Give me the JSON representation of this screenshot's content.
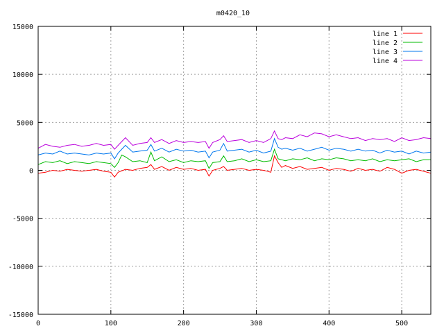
{
  "chart_data": {
    "type": "line",
    "title": "m0420_10",
    "xlabel": "",
    "ylabel": "",
    "xlim": [
      0,
      540
    ],
    "ylim": [
      -15000,
      15000
    ],
    "xticks": [
      0,
      100,
      200,
      300,
      400,
      500
    ],
    "yticks": [
      -15000,
      -10000,
      -5000,
      0,
      5000,
      10000,
      15000
    ],
    "grid": true,
    "legend_position": "top-right",
    "series": [
      {
        "name": "line 1",
        "color": "#ff0000",
        "x": [
          0,
          10,
          20,
          30,
          40,
          50,
          60,
          70,
          80,
          90,
          100,
          105,
          110,
          120,
          130,
          140,
          150,
          155,
          160,
          170,
          180,
          190,
          200,
          210,
          220,
          230,
          235,
          240,
          250,
          255,
          260,
          270,
          280,
          290,
          300,
          310,
          320,
          325,
          330,
          335,
          340,
          350,
          360,
          370,
          380,
          390,
          400,
          410,
          420,
          430,
          440,
          450,
          460,
          470,
          480,
          490,
          500,
          510,
          520,
          530,
          540
        ],
        "y": [
          -300,
          -200,
          0,
          -100,
          100,
          0,
          -100,
          0,
          100,
          -100,
          -200,
          -700,
          -200,
          100,
          0,
          200,
          300,
          600,
          100,
          400,
          0,
          300,
          100,
          200,
          0,
          100,
          -600,
          0,
          200,
          400,
          0,
          100,
          200,
          0,
          100,
          0,
          -200,
          1500,
          800,
          300,
          500,
          200,
          400,
          100,
          200,
          300,
          0,
          200,
          100,
          -100,
          200,
          0,
          100,
          -100,
          300,
          100,
          -300,
          0,
          100,
          -100,
          -300
        ]
      },
      {
        "name": "line 2",
        "color": "#00bb00",
        "x": [
          0,
          10,
          20,
          30,
          40,
          50,
          60,
          70,
          80,
          90,
          100,
          105,
          110,
          115,
          120,
          130,
          140,
          150,
          155,
          160,
          170,
          180,
          190,
          200,
          210,
          220,
          230,
          235,
          240,
          250,
          255,
          260,
          270,
          280,
          290,
          300,
          310,
          320,
          325,
          330,
          335,
          340,
          350,
          360,
          370,
          380,
          390,
          400,
          410,
          420,
          430,
          440,
          450,
          460,
          470,
          480,
          490,
          500,
          510,
          520,
          530,
          540
        ],
        "y": [
          600,
          900,
          800,
          1000,
          700,
          900,
          800,
          700,
          900,
          800,
          700,
          300,
          800,
          1600,
          1400,
          900,
          1000,
          800,
          1900,
          1000,
          1400,
          900,
          1100,
          800,
          1000,
          900,
          1000,
          200,
          800,
          900,
          1500,
          900,
          1000,
          1200,
          900,
          1100,
          900,
          1000,
          2200,
          1200,
          1100,
          1000,
          1200,
          1100,
          1300,
          1000,
          1200,
          1100,
          1300,
          1200,
          1000,
          1100,
          1000,
          1200,
          900,
          1100,
          1000,
          1100,
          1200,
          900,
          1100,
          1100
        ]
      },
      {
        "name": "line 3",
        "color": "#0077ee",
        "x": [
          0,
          10,
          20,
          30,
          40,
          50,
          60,
          70,
          80,
          90,
          100,
          105,
          110,
          120,
          130,
          140,
          150,
          155,
          160,
          170,
          180,
          190,
          200,
          210,
          220,
          230,
          235,
          240,
          250,
          255,
          260,
          270,
          280,
          290,
          300,
          310,
          320,
          325,
          330,
          335,
          340,
          350,
          360,
          370,
          380,
          390,
          400,
          410,
          420,
          430,
          440,
          450,
          460,
          470,
          480,
          490,
          500,
          510,
          520,
          530,
          540
        ],
        "y": [
          1600,
          1800,
          1700,
          2000,
          1700,
          1800,
          1700,
          1600,
          1800,
          1700,
          1800,
          1200,
          1800,
          2600,
          1900,
          2000,
          2100,
          2700,
          2000,
          2300,
          1900,
          2200,
          2000,
          2100,
          1900,
          2000,
          1300,
          1900,
          2100,
          2800,
          2000,
          2100,
          2200,
          1900,
          2100,
          1800,
          2000,
          3300,
          2400,
          2200,
          2300,
          2100,
          2300,
          2000,
          2200,
          2400,
          2100,
          2300,
          2200,
          2000,
          2200,
          2000,
          2100,
          1800,
          2100,
          1900,
          2000,
          1700,
          2000,
          1800,
          1900
        ]
      },
      {
        "name": "line 4",
        "color": "#bb00dd",
        "x": [
          0,
          10,
          20,
          30,
          40,
          50,
          60,
          70,
          80,
          90,
          100,
          105,
          110,
          120,
          130,
          140,
          150,
          155,
          160,
          170,
          180,
          190,
          200,
          210,
          220,
          230,
          235,
          240,
          250,
          255,
          260,
          270,
          280,
          290,
          300,
          310,
          320,
          325,
          330,
          335,
          340,
          350,
          360,
          370,
          380,
          390,
          400,
          410,
          420,
          430,
          440,
          450,
          460,
          470,
          480,
          490,
          500,
          510,
          520,
          530,
          540
        ],
        "y": [
          2300,
          2700,
          2500,
          2400,
          2600,
          2700,
          2500,
          2600,
          2800,
          2600,
          2700,
          2200,
          2600,
          3400,
          2600,
          2800,
          2900,
          3400,
          2900,
          3200,
          2800,
          3100,
          2900,
          3000,
          2900,
          3000,
          2300,
          2900,
          3200,
          3600,
          3000,
          3100,
          3200,
          2900,
          3100,
          2900,
          3300,
          4100,
          3300,
          3200,
          3400,
          3300,
          3700,
          3500,
          3900,
          3800,
          3500,
          3700,
          3500,
          3300,
          3400,
          3100,
          3300,
          3200,
          3300,
          3000,
          3400,
          3100,
          3200,
          3400,
          3300
        ]
      }
    ]
  }
}
